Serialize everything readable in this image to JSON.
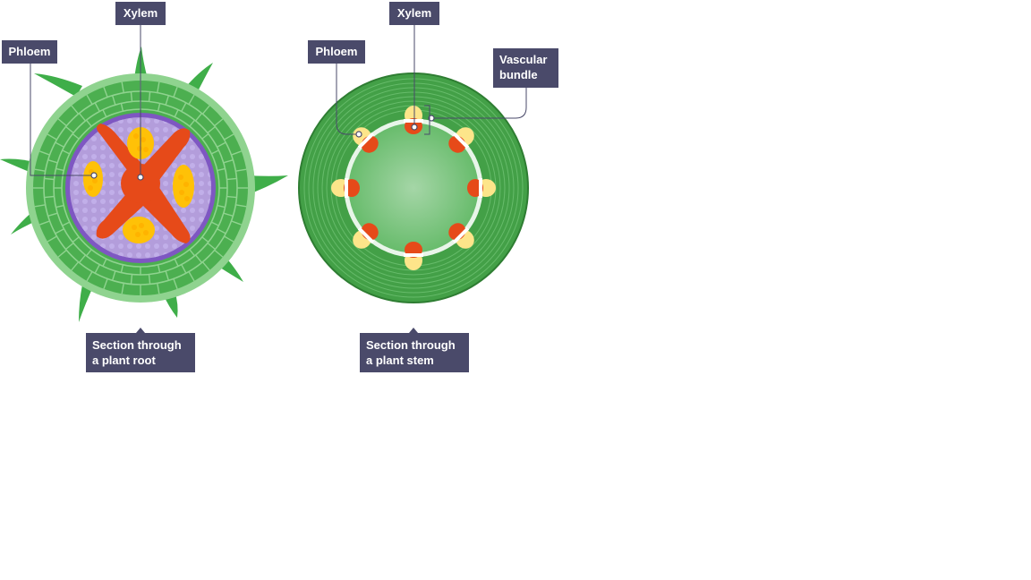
{
  "root": {
    "xylem_label": "Xylem",
    "phloem_label": "Phloem",
    "caption_line1": "Section through",
    "caption_line2": "a plant root"
  },
  "stem": {
    "xylem_label": "Xylem",
    "phloem_label": "Phloem",
    "bundle_line1": "Vascular",
    "bundle_line2": "bundle",
    "caption_line1": "Section through",
    "caption_line2": "a plant stem"
  },
  "colors": {
    "label_bg": "#4a4a6a",
    "epidermis": "#8fd38f",
    "cortex": "#4caf50",
    "root_hair": "#3fae49",
    "endodermis": "#7e57c2",
    "pericycle": "#b39ddb",
    "xylem": "#e64a19",
    "phloem": "#ffc107",
    "stem_outer": "#43a047",
    "stem_pith": "#a5d6a7",
    "stem_ring": "#e0f0e0"
  }
}
